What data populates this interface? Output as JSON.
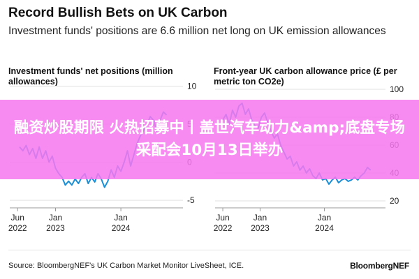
{
  "header": {
    "title": "Record Bullish Bets on UK Carbon",
    "subtitle": "Investment funds' positions are 6.6 million net long on UK emission allowances"
  },
  "overlay": {
    "text": "融资炒股期限 火热招募中丨盖世汽车动力&amp;底盘专场采配会10月13日举办",
    "color": "#f778f0"
  },
  "footer": {
    "source": "Source: BloombergNEF's UK Carbon Market Monitor LiveSheet, ICE.",
    "brand": "BloombergNEF"
  },
  "colors": {
    "series": "#1a8fd6",
    "axis": "#999999",
    "grid": "#e2e2e2"
  },
  "chart_data": [
    {
      "type": "line",
      "title": "Investment funds' net positions (million allowances)",
      "ylim": [
        -6,
        10.5
      ],
      "yticks": [
        -5,
        0,
        5,
        10
      ],
      "ytick_labels": [
        "-5",
        "0",
        "5",
        "10"
      ],
      "xlim": [
        2022.3,
        2024.95
      ],
      "xticks": [
        2022.42,
        2023.0,
        2024.0
      ],
      "xtick_labels": [
        "Jun\n2022",
        "Jan\n2023",
        "Jan\n2024"
      ],
      "grid": true,
      "series": [
        {
          "color": "#1a8fd6",
          "x": [
            2022.45,
            2022.5,
            2022.55,
            2022.6,
            2022.65,
            2022.7,
            2022.75,
            2022.8,
            2022.85,
            2022.9,
            2022.95,
            2023.0,
            2023.05,
            2023.1,
            2023.15,
            2023.2,
            2023.25,
            2023.3,
            2023.35,
            2023.4,
            2023.45,
            2023.5,
            2023.55,
            2023.6,
            2023.65,
            2023.7,
            2023.75,
            2023.8,
            2023.85,
            2023.9,
            2023.95,
            2024.0,
            2024.05,
            2024.1,
            2024.15,
            2024.2,
            2024.25,
            2024.3,
            2024.35,
            2024.4,
            2024.45,
            2024.5,
            2024.55,
            2024.6,
            2024.65,
            2024.7
          ],
          "values": [
            2,
            1.5,
            2.2,
            1,
            1.8,
            0.5,
            2,
            0.5,
            1.5,
            0,
            0.8,
            -0.8,
            -1.5,
            -2,
            -3,
            -2.5,
            -3,
            -2.2,
            -2.8,
            -2,
            -1.5,
            -2.8,
            -2,
            -2.6,
            -1.5,
            -2.2,
            -3.3,
            -2.5,
            -1,
            -2,
            -0.5,
            -1.2,
            0,
            1.5,
            -0.5,
            1,
            2.5,
            3.5,
            4.2,
            5,
            6,
            5.5,
            4,
            5.5,
            6.6,
            6.2
          ]
        }
      ]
    },
    {
      "type": "line",
      "title": "Front-year UK carbon allowance price (£ per metric ton CO2e)",
      "ylim": [
        15,
        105
      ],
      "yticks": [
        20,
        40,
        60,
        80,
        100
      ],
      "ytick_labels": [
        "20",
        "40",
        "60",
        "80",
        "100"
      ],
      "xlim": [
        2022.3,
        2024.95
      ],
      "xticks": [
        2022.42,
        2023.0,
        2024.0
      ],
      "xtick_labels": [
        "Jun\n2022",
        "Jan\n2023",
        "Jan\n2024"
      ],
      "grid": true,
      "series": [
        {
          "color": "#1a8fd6",
          "x": [
            2022.42,
            2022.47,
            2022.52,
            2022.57,
            2022.62,
            2022.67,
            2022.72,
            2022.77,
            2022.82,
            2022.87,
            2022.92,
            2022.97,
            2023.02,
            2023.07,
            2023.12,
            2023.17,
            2023.22,
            2023.27,
            2023.32,
            2023.37,
            2023.42,
            2023.47,
            2023.52,
            2023.57,
            2023.62,
            2023.67,
            2023.72,
            2023.77,
            2023.82,
            2023.87,
            2023.92,
            2023.97,
            2024.02,
            2024.07,
            2024.12,
            2024.17,
            2024.22,
            2024.27,
            2024.32,
            2024.37,
            2024.42,
            2024.47,
            2024.52,
            2024.57,
            2024.62,
            2024.67,
            2024.72
          ],
          "values": [
            78,
            82,
            75,
            85,
            80,
            88,
            90,
            82,
            86,
            78,
            74,
            72,
            80,
            83,
            76,
            70,
            65,
            68,
            60,
            55,
            50,
            52,
            45,
            48,
            42,
            45,
            40,
            43,
            38,
            36,
            40,
            35,
            36,
            32,
            35,
            37,
            33,
            35,
            36,
            34,
            35,
            37,
            35,
            38,
            40,
            44,
            42
          ]
        }
      ]
    }
  ]
}
